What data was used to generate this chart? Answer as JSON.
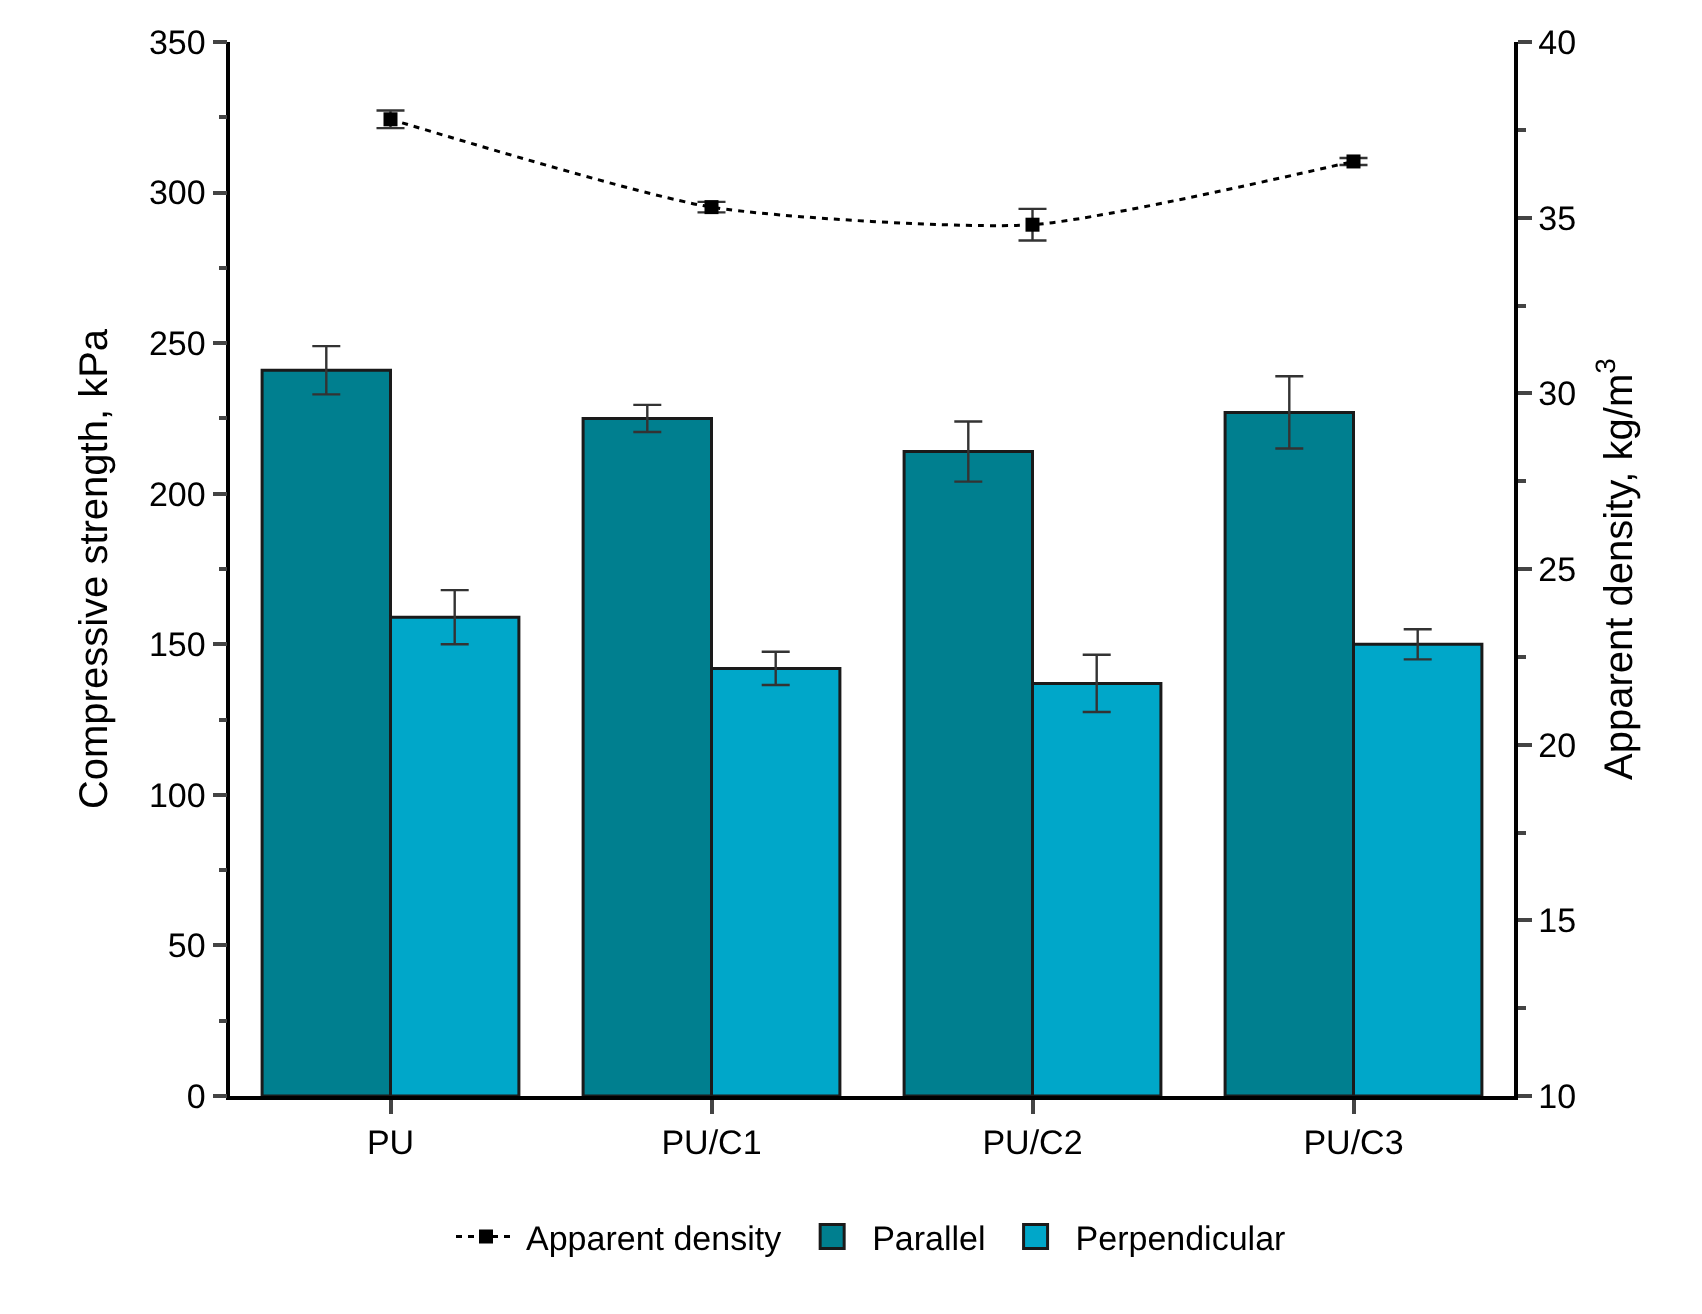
{
  "chart_data": {
    "type": "bar",
    "categories": [
      "PU",
      "PU/C1",
      "PU/C2",
      "PU/C3"
    ],
    "ylabel": "Compressive strength, kPa",
    "y2label": "Apparent density, kg/m$^{3}$",
    "series": [
      {
        "name": "Apparent density",
        "type": "line",
        "axis": "y2",
        "color": "#000000",
        "marker": "square",
        "line_style": "dotted",
        "values": [
          37.8,
          35.3,
          34.8,
          36.6
        ],
        "errors": [
          0.25,
          0.15,
          0.45,
          0.1
        ]
      },
      {
        "name": "Parallel",
        "color": "#007f8f",
        "values": [
          241,
          225,
          214,
          227
        ],
        "errors": [
          8,
          4.5,
          10,
          12
        ]
      },
      {
        "name": "Perpendicular",
        "color": "#00a7c9",
        "values": [
          159,
          142,
          137,
          150
        ],
        "errors": [
          9,
          5.5,
          9.5,
          5
        ]
      }
    ],
    "ylim": [
      0,
      350
    ],
    "yticks": [
      0,
      50,
      100,
      150,
      200,
      250,
      300,
      350
    ],
    "y2lim": [
      10,
      40
    ],
    "y2ticks": [
      10,
      15,
      20,
      25,
      30,
      35,
      40
    ],
    "legend": "bottom"
  }
}
